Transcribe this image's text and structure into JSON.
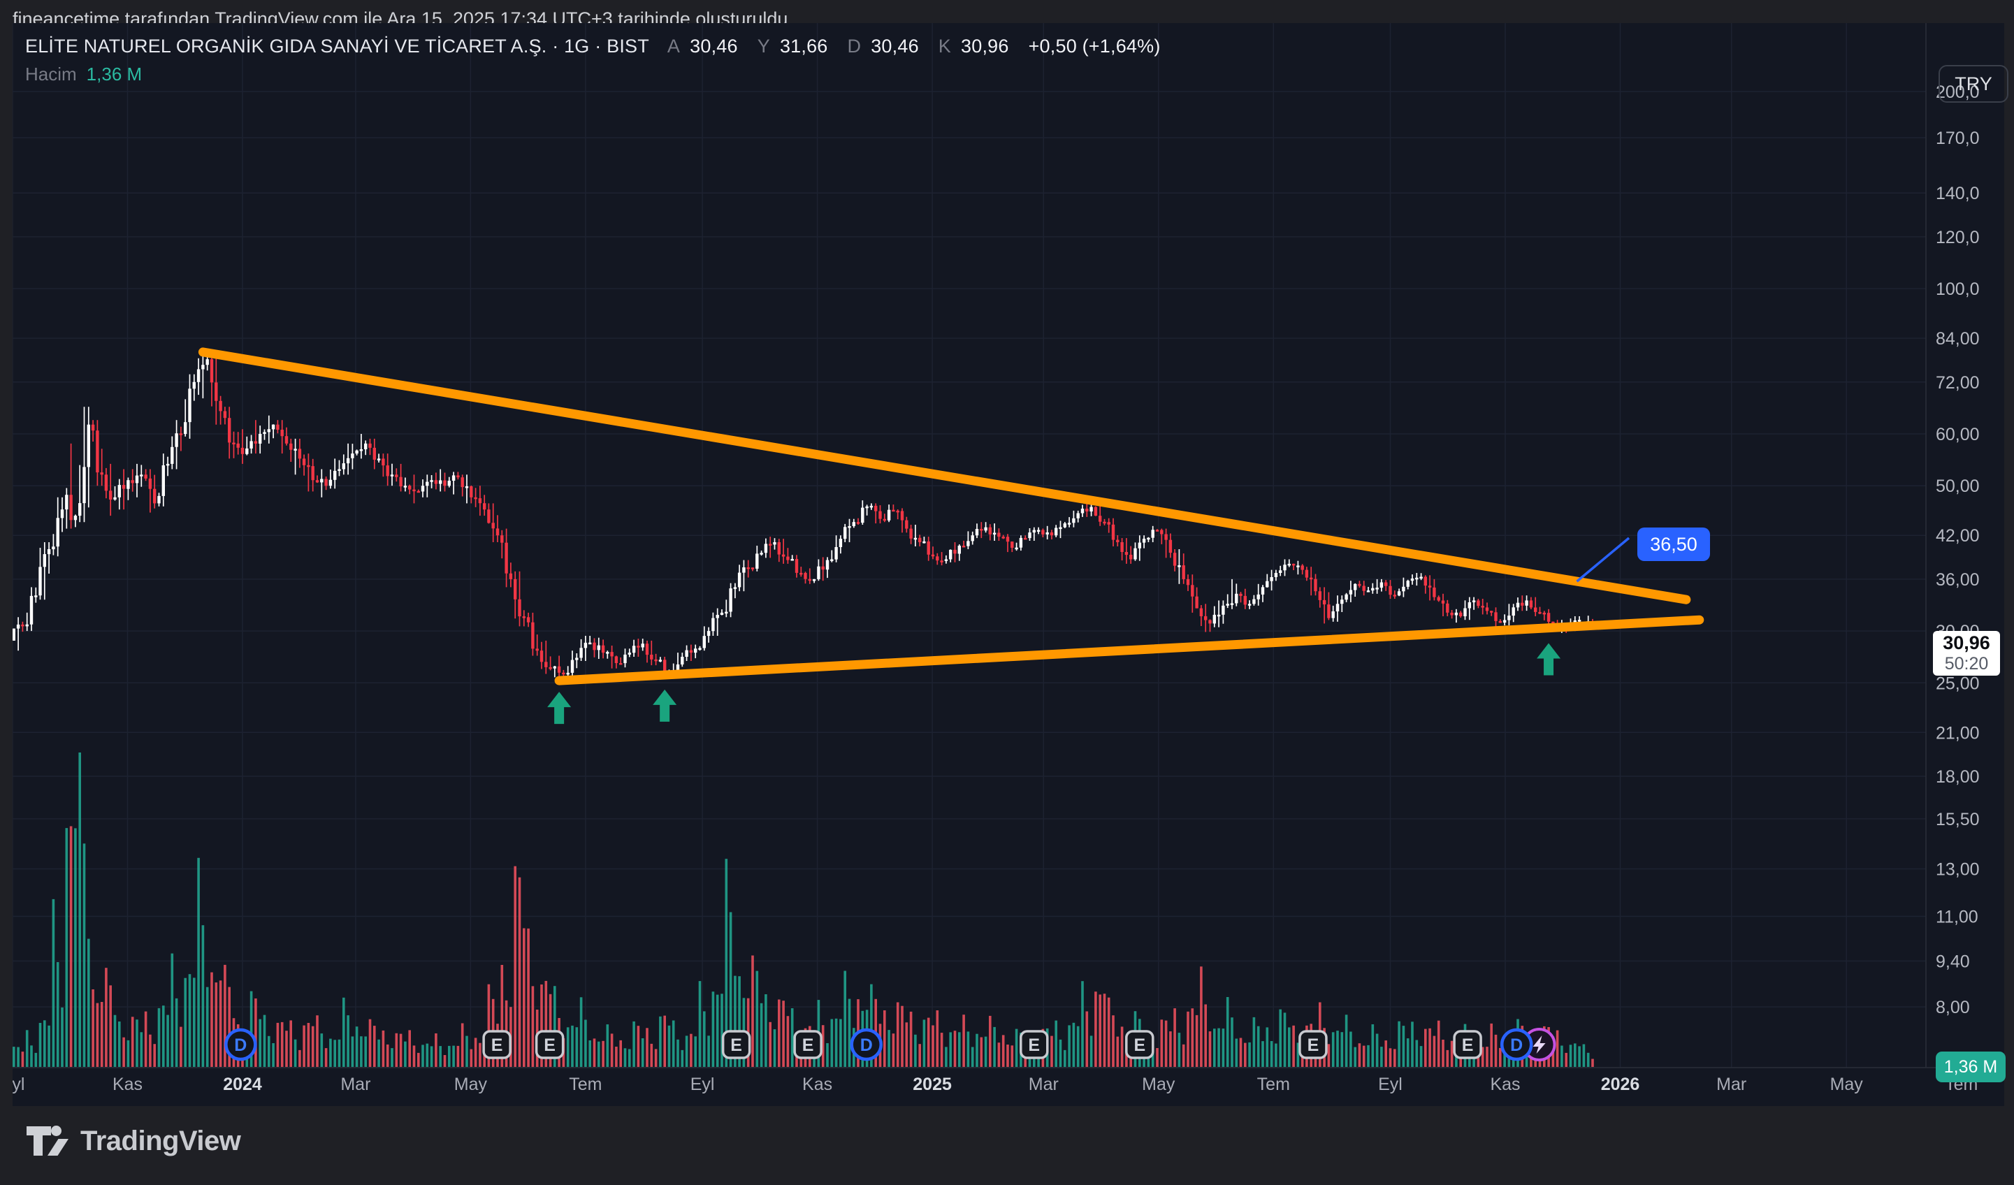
{
  "attribution": "fineancetime tarafından TradingView.com ile Ara 15, 2025 17:34 UTC+3 tarihinde oluşturuldu",
  "header": {
    "symbol_title": "ELİTE NATUREL ORGANİK GIDA SANAYİ VE TİCARET A.Ş. · 1G · BIST",
    "ohlc": [
      {
        "label": "A",
        "value": "30,46"
      },
      {
        "label": "Y",
        "value": "31,66"
      },
      {
        "label": "D",
        "value": "30,46"
      },
      {
        "label": "K",
        "value": "30,96"
      }
    ],
    "change": "+0,50 (+1,64%)",
    "volume_label": "Hacim",
    "volume_value": "1,36 M"
  },
  "axis": {
    "currency": "TRY"
  },
  "price_label": {
    "price": "30,96",
    "countdown": "50:20"
  },
  "volume_axis_label": "1,36 M",
  "callout": {
    "text": "36,50",
    "anchor_date": "2025-12-09"
  },
  "footer": {
    "brand": "TradingView"
  },
  "chart_data": {
    "type": "candlestick+volume",
    "symbol": "ELİTE NATUREL ORGANİK GIDA SANAYİ VE TİCARET A.Ş.",
    "interval": "1G",
    "exchange": "BIST",
    "scale": "log",
    "grid": true,
    "x_range": [
      "2023-09-01",
      "2026-07-31"
    ],
    "colors": {
      "bg_pane": "#131722",
      "bg_outer": "#1f2025",
      "grid": "#1d2231",
      "up": "#ffffff",
      "down": "#f23645",
      "vol_up": "#22ab94",
      "vol_down": "#f7525f",
      "trend": "#ff9800",
      "blue": "#2962ff",
      "arrow": "#1aa47e",
      "event": "#c552e2",
      "axis_text": "#b6b9c2"
    },
    "y_ticks": [
      {
        "v": 200,
        "label": "200,0"
      },
      {
        "v": 170,
        "label": "170,0"
      },
      {
        "v": 140,
        "label": "140,0"
      },
      {
        "v": 120,
        "label": "120,0"
      },
      {
        "v": 100,
        "label": "100,0"
      },
      {
        "v": 84,
        "label": "84,00"
      },
      {
        "v": 72,
        "label": "72,00"
      },
      {
        "v": 60,
        "label": "60,00"
      },
      {
        "v": 50,
        "label": "50,00"
      },
      {
        "v": 42,
        "label": "42,00"
      },
      {
        "v": 36,
        "label": "36,00"
      },
      {
        "v": 30,
        "label": "30,00"
      },
      {
        "v": 25,
        "label": "25,00"
      },
      {
        "v": 21,
        "label": "21,00"
      },
      {
        "v": 18,
        "label": "18,00"
      },
      {
        "v": 15.5,
        "label": "15,50"
      },
      {
        "v": 13,
        "label": "13,00"
      },
      {
        "v": 11,
        "label": "11,00"
      },
      {
        "v": 9.4,
        "label": "9,40"
      },
      {
        "v": 8,
        "label": "8,00"
      }
    ],
    "x_ticks": [
      {
        "label": "Eyl",
        "date": "2023-09-01"
      },
      {
        "label": "Kas",
        "date": "2023-11-01"
      },
      {
        "label": "2024",
        "date": "2024-01-01",
        "bold": true
      },
      {
        "label": "Mar",
        "date": "2024-03-01"
      },
      {
        "label": "May",
        "date": "2024-05-01"
      },
      {
        "label": "Tem",
        "date": "2024-07-01"
      },
      {
        "label": "Eyl",
        "date": "2024-09-01"
      },
      {
        "label": "Kas",
        "date": "2024-11-01"
      },
      {
        "label": "2025",
        "date": "2025-01-01",
        "bold": true
      },
      {
        "label": "Mar",
        "date": "2025-03-01"
      },
      {
        "label": "May",
        "date": "2025-05-01"
      },
      {
        "label": "Tem",
        "date": "2025-07-01"
      },
      {
        "label": "Eyl",
        "date": "2025-09-01"
      },
      {
        "label": "Kas",
        "date": "2025-11-01"
      },
      {
        "label": "2026",
        "date": "2026-01-01",
        "bold": true
      },
      {
        "label": "Mar",
        "date": "2026-03-01"
      },
      {
        "label": "May",
        "date": "2026-05-01"
      },
      {
        "label": "Tem",
        "date": "2026-07-01"
      }
    ],
    "candles_weekly_ohlcv_millions": [
      [
        "2023-09-04",
        29,
        31.5,
        28,
        30.5,
        1.5
      ],
      [
        "2023-09-11",
        30.5,
        35,
        30,
        34,
        2.5
      ],
      [
        "2023-09-18",
        34,
        41,
        33.5,
        40,
        4
      ],
      [
        "2023-09-25",
        40,
        48,
        39,
        46,
        10
      ],
      [
        "2023-10-02",
        46,
        58,
        43,
        45,
        25
      ],
      [
        "2023-10-09",
        45,
        66,
        44,
        62,
        18
      ],
      [
        "2023-10-16",
        62,
        63,
        50,
        52,
        8
      ],
      [
        "2023-10-23",
        52,
        54,
        45,
        48,
        6
      ],
      [
        "2023-10-30",
        48,
        53,
        46,
        51,
        4
      ],
      [
        "2023-11-06",
        51,
        54,
        48,
        52,
        3.5
      ],
      [
        "2023-11-13",
        52,
        53,
        45.5,
        47,
        4
      ],
      [
        "2023-11-20",
        47,
        56,
        46.5,
        54,
        5
      ],
      [
        "2023-11-27",
        54,
        63,
        53,
        60,
        7
      ],
      [
        "2023-12-04",
        60,
        74,
        59,
        72,
        9
      ],
      [
        "2023-12-11",
        72,
        80,
        68,
        78,
        12
      ],
      [
        "2023-12-18",
        78,
        79,
        62,
        65,
        10
      ],
      [
        "2023-12-25",
        65,
        66,
        55,
        58,
        6
      ],
      [
        "2024-01-01",
        58,
        61,
        54,
        57,
        4
      ],
      [
        "2024-01-08",
        57,
        63,
        56,
        60,
        5
      ],
      [
        "2024-01-15",
        60,
        64,
        58,
        62,
        4
      ],
      [
        "2024-01-22",
        62,
        63,
        56,
        58,
        3.5
      ],
      [
        "2024-01-29",
        58,
        59,
        52,
        55,
        3
      ],
      [
        "2024-02-05",
        55,
        56,
        49,
        51,
        4
      ],
      [
        "2024-02-12",
        51,
        53,
        48,
        50,
        3
      ],
      [
        "2024-02-19",
        50,
        55,
        49.5,
        53,
        3
      ],
      [
        "2024-02-26",
        53,
        58,
        52,
        56,
        4
      ],
      [
        "2024-03-04",
        56,
        60,
        55,
        58,
        4
      ],
      [
        "2024-03-11",
        58,
        59,
        53,
        55,
        3
      ],
      [
        "2024-03-18",
        55,
        56,
        50,
        52,
        3
      ],
      [
        "2024-03-25",
        52,
        54,
        49,
        50,
        2.5
      ],
      [
        "2024-04-01",
        50,
        52,
        47,
        49,
        2.5
      ],
      [
        "2024-04-08",
        49,
        52,
        48,
        51,
        2
      ],
      [
        "2024-04-15",
        51,
        53,
        49,
        50,
        2
      ],
      [
        "2024-04-22",
        50,
        52.5,
        48.5,
        51.5,
        2.2
      ],
      [
        "2024-04-29",
        51.5,
        52,
        47,
        48,
        2.5
      ],
      [
        "2024-05-06",
        48,
        50,
        45,
        46,
        3
      ],
      [
        "2024-05-13",
        46,
        47,
        41,
        42,
        5
      ],
      [
        "2024-05-20",
        42,
        43,
        35,
        36,
        9
      ],
      [
        "2024-05-27",
        36,
        37,
        30.5,
        31.5,
        14
      ],
      [
        "2024-06-03",
        31.5,
        32,
        27.5,
        28,
        10
      ],
      [
        "2024-06-10",
        28,
        29,
        25.8,
        26.3,
        7
      ],
      [
        "2024-06-17",
        26.3,
        27.5,
        25.2,
        25.8,
        5
      ],
      [
        "2024-06-24",
        25.8,
        28,
        25.5,
        27.3,
        4
      ],
      [
        "2024-07-01",
        27.3,
        29.5,
        27,
        28.8,
        4
      ],
      [
        "2024-07-08",
        28.8,
        29.3,
        27.2,
        27.8,
        3
      ],
      [
        "2024-07-15",
        27.8,
        28.5,
        26.3,
        26.8,
        2.5
      ],
      [
        "2024-07-22",
        26.8,
        28.2,
        26.4,
        27.8,
        2.5
      ],
      [
        "2024-07-29",
        27.8,
        29.2,
        27.4,
        28.7,
        3
      ],
      [
        "2024-08-05",
        28.7,
        29,
        26.6,
        27,
        3
      ],
      [
        "2024-08-12",
        27,
        27.4,
        25.4,
        26.1,
        4
      ],
      [
        "2024-08-19",
        26.1,
        27.8,
        25.9,
        27.4,
        3
      ],
      [
        "2024-08-26",
        27.4,
        28.6,
        27,
        28.2,
        3
      ],
      [
        "2024-09-02",
        28.2,
        30.5,
        28,
        30,
        5
      ],
      [
        "2024-09-09",
        30,
        32.5,
        29.5,
        32,
        8
      ],
      [
        "2024-09-16",
        32,
        35.5,
        31.5,
        35,
        12
      ],
      [
        "2024-09-23",
        35,
        38.5,
        34.5,
        37.5,
        9
      ],
      [
        "2024-09-30",
        37.5,
        40.5,
        37,
        39.5,
        7
      ],
      [
        "2024-10-07",
        39.5,
        41.8,
        38.8,
        41,
        6
      ],
      [
        "2024-10-14",
        41,
        41.5,
        38,
        38.5,
        5
      ],
      [
        "2024-10-21",
        38.5,
        39.2,
        36.2,
        36.8,
        4
      ],
      [
        "2024-10-28",
        36.8,
        37.4,
        35.4,
        36,
        3.5
      ],
      [
        "2024-11-04",
        36,
        38.9,
        35.8,
        38.5,
        4
      ],
      [
        "2024-11-11",
        38.5,
        42,
        38.2,
        41.5,
        5
      ],
      [
        "2024-11-18",
        41.5,
        44.5,
        41,
        44,
        5.5
      ],
      [
        "2024-11-25",
        44,
        47.5,
        43.6,
        46.5,
        7
      ],
      [
        "2024-12-02",
        46.5,
        47,
        43.8,
        44.5,
        5
      ],
      [
        "2024-12-09",
        44.5,
        46.8,
        44,
        45.8,
        5
      ],
      [
        "2024-12-16",
        45.8,
        46.2,
        42.4,
        43,
        4.5
      ],
      [
        "2024-12-23",
        43,
        43.6,
        40.4,
        41,
        4
      ],
      [
        "2024-12-30",
        41,
        41.8,
        38.4,
        39,
        4
      ],
      [
        "2025-01-06",
        39,
        39.6,
        37.8,
        38.6,
        3.5
      ],
      [
        "2025-01-13",
        38.6,
        41,
        38.2,
        40.5,
        3.5
      ],
      [
        "2025-01-20",
        40.5,
        42.6,
        40,
        42,
        3
      ],
      [
        "2025-01-27",
        42,
        44,
        41.6,
        43.2,
        3.5
      ],
      [
        "2025-02-03",
        43.2,
        43.8,
        41.2,
        41.8,
        3
      ],
      [
        "2025-02-10",
        41.8,
        42.2,
        39.6,
        40.2,
        3
      ],
      [
        "2025-02-17",
        40.2,
        42,
        39.8,
        41.6,
        2.5
      ],
      [
        "2025-02-24",
        41.6,
        43.2,
        41.2,
        42.8,
        2.5
      ],
      [
        "2025-03-03",
        42.8,
        43.4,
        41.4,
        42,
        3
      ],
      [
        "2025-03-10",
        42,
        44.2,
        41.6,
        43.8,
        3
      ],
      [
        "2025-03-17",
        43.8,
        45.8,
        43.2,
        45.4,
        4
      ],
      [
        "2025-03-24",
        45.4,
        47,
        44.8,
        46.4,
        5
      ],
      [
        "2025-03-31",
        46.4,
        46.8,
        43.4,
        44,
        8
      ],
      [
        "2025-04-07",
        44,
        44.6,
        40.4,
        41,
        4
      ],
      [
        "2025-04-14",
        41,
        41.6,
        38,
        38.6,
        4
      ],
      [
        "2025-04-21",
        38.6,
        42,
        38.4,
        41.5,
        3.5
      ],
      [
        "2025-04-28",
        41.5,
        43.4,
        41,
        42.8,
        3
      ],
      [
        "2025-05-05",
        42.8,
        43,
        38.8,
        39.5,
        3.5
      ],
      [
        "2025-05-12",
        39.5,
        40,
        35.4,
        36,
        4
      ],
      [
        "2025-05-19",
        36,
        36.6,
        32,
        32.5,
        5
      ],
      [
        "2025-05-26",
        32.5,
        33,
        29.9,
        30.8,
        6
      ],
      [
        "2025-06-02",
        30.8,
        33.4,
        30.4,
        32.8,
        4
      ],
      [
        "2025-06-09",
        32.8,
        36,
        32.4,
        34.2,
        4
      ],
      [
        "2025-06-16",
        34.2,
        34.8,
        32.4,
        33,
        3
      ],
      [
        "2025-06-23",
        33,
        35.4,
        32.8,
        35,
        3
      ],
      [
        "2025-06-30",
        35,
        37.2,
        34.6,
        36.8,
        3.5
      ],
      [
        "2025-07-07",
        36.8,
        38.6,
        36.4,
        38,
        4
      ],
      [
        "2025-07-14",
        38,
        38.4,
        36.6,
        37.2,
        3
      ],
      [
        "2025-07-21",
        37.2,
        37.6,
        34,
        34.5,
        3.5
      ],
      [
        "2025-07-28",
        34.5,
        35,
        30.8,
        31.4,
        4
      ],
      [
        "2025-08-04",
        31.4,
        34,
        31,
        33.5,
        3.5
      ],
      [
        "2025-08-11",
        33.5,
        35.8,
        33.2,
        35.4,
        3
      ],
      [
        "2025-08-18",
        35.4,
        35.8,
        34,
        34.6,
        2.5
      ],
      [
        "2025-08-25",
        34.6,
        36,
        34.2,
        35.6,
        2.5
      ],
      [
        "2025-09-01",
        35.6,
        35.9,
        33.6,
        34,
        2.5
      ],
      [
        "2025-09-08",
        34,
        36.2,
        33.8,
        35.8,
        3
      ],
      [
        "2025-09-15",
        35.8,
        36.8,
        35.2,
        36.3,
        3.5
      ],
      [
        "2025-09-22",
        36.3,
        36.5,
        33.4,
        33.8,
        3
      ],
      [
        "2025-09-29",
        33.8,
        34.2,
        31.6,
        32,
        3
      ],
      [
        "2025-10-06",
        32,
        32.4,
        30.9,
        31.6,
        2.5
      ],
      [
        "2025-10-13",
        31.6,
        33.8,
        31.2,
        33.4,
        2.5
      ],
      [
        "2025-10-20",
        33.4,
        33.6,
        31.8,
        32.2,
        2.2
      ],
      [
        "2025-10-27",
        32.2,
        32.6,
        30.2,
        30.9,
        2.5
      ],
      [
        "2025-11-03",
        30.9,
        33,
        30.6,
        32.6,
        2.5
      ],
      [
        "2025-11-10",
        32.6,
        34,
        32.2,
        33.4,
        3
      ],
      [
        "2025-11-17",
        33.4,
        33.8,
        31.6,
        32,
        2.5
      ],
      [
        "2025-11-24",
        32,
        32.4,
        29.9,
        30.8,
        3
      ],
      [
        "2025-12-01",
        30.8,
        31.2,
        29.8,
        30.2,
        2.5
      ],
      [
        "2025-12-08",
        30.2,
        31.6,
        30,
        31.2,
        2
      ],
      [
        "2025-12-15",
        30.46,
        31.66,
        30.46,
        30.96,
        1.36
      ]
    ],
    "trendlines": [
      {
        "name": "upper-descending",
        "color": "#ff9800",
        "from": {
          "date": "2023-12-11",
          "price": 80
        },
        "to": {
          "date": "2026-02-05",
          "price": 33.5
        }
      },
      {
        "name": "lower-ascending",
        "color": "#ff9800",
        "from": {
          "date": "2024-06-17",
          "price": 25.2
        },
        "to": {
          "date": "2026-02-12",
          "price": 31.2
        }
      }
    ],
    "arrows_up": [
      {
        "date": "2024-06-17"
      },
      {
        "date": "2024-08-12"
      },
      {
        "date": "2025-11-24"
      }
    ],
    "event_markers": [
      {
        "type": "D",
        "date": "2023-12-31"
      },
      {
        "type": "E",
        "date": "2024-05-15"
      },
      {
        "type": "E",
        "date": "2024-06-12"
      },
      {
        "type": "E",
        "date": "2024-09-19"
      },
      {
        "type": "E",
        "date": "2024-10-27"
      },
      {
        "type": "D",
        "date": "2024-11-27"
      },
      {
        "type": "E",
        "date": "2025-02-24"
      },
      {
        "type": "E",
        "date": "2025-04-21"
      },
      {
        "type": "E",
        "date": "2025-07-22"
      },
      {
        "type": "E",
        "date": "2025-10-12"
      },
      {
        "type": "D",
        "date": "2025-11-07"
      },
      {
        "type": "event",
        "date": "2025-11-19"
      }
    ]
  }
}
